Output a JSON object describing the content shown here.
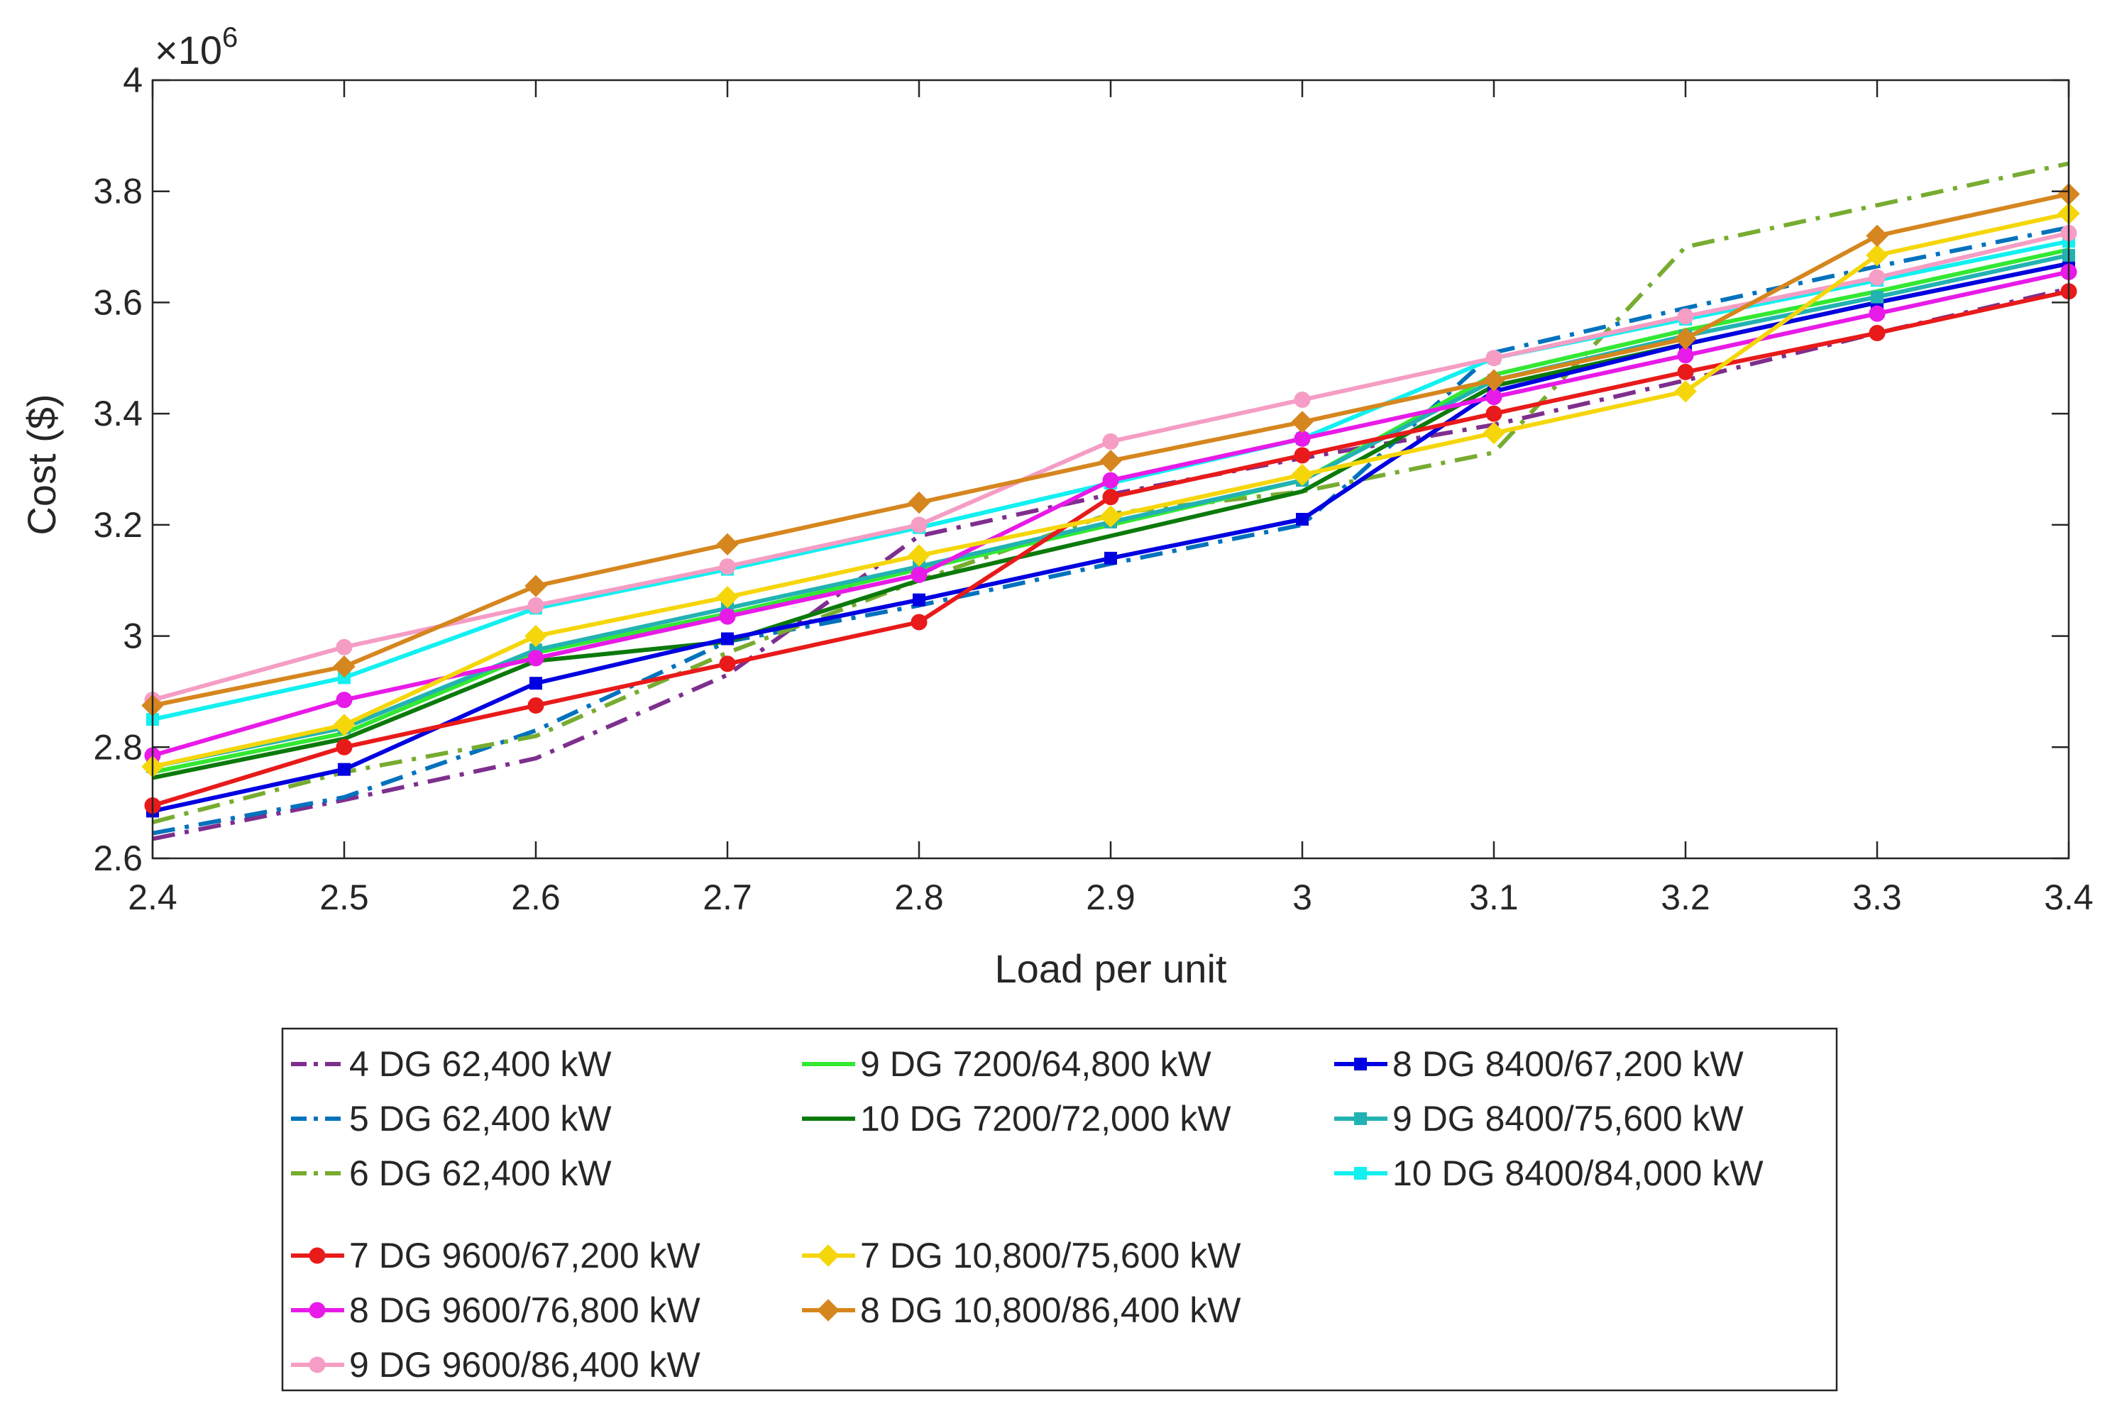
{
  "chart_data": {
    "type": "line",
    "xlabel": "Load per unit",
    "ylabel": "Cost ($)",
    "y_exponent_label": "×10",
    "y_exponent_power": "6",
    "xlim": [
      2.4,
      3.4
    ],
    "ylim": [
      2.6,
      4.0
    ],
    "y_scale": 1000000,
    "grid": false,
    "legend_position": "below plot",
    "x_ticks": [
      "2.4",
      "2.5",
      "2.6",
      "2.7",
      "2.8",
      "2.9",
      "3",
      "3.1",
      "3.2",
      "3.3",
      "3.4"
    ],
    "y_ticks": [
      "2.6",
      "2.8",
      "3",
      "3.2",
      "3.4",
      "3.6",
      "3.8",
      "4"
    ],
    "x": [
      2.4,
      2.5,
      2.6,
      2.7,
      2.8,
      2.9,
      3.0,
      3.1,
      3.2,
      3.3,
      3.4
    ],
    "series": [
      {
        "name": "4 DG 62,400 kW",
        "color": "#7E2F8E",
        "style": "dashdot",
        "marker": "none",
        "values": [
          2.635,
          2.705,
          2.78,
          2.93,
          3.18,
          3.255,
          3.32,
          3.38,
          3.46,
          3.545,
          3.625
        ]
      },
      {
        "name": "5 DG 62,400 kW",
        "color": "#0072BD",
        "style": "dashdot",
        "marker": "none",
        "values": [
          2.645,
          2.71,
          2.83,
          2.99,
          3.055,
          3.13,
          3.2,
          3.51,
          3.59,
          3.665,
          3.735
        ]
      },
      {
        "name": "6 DG 62,400 kW",
        "color": "#77AC30",
        "style": "dashdot",
        "marker": "none",
        "values": [
          2.665,
          2.755,
          2.82,
          2.97,
          3.1,
          3.22,
          3.26,
          3.33,
          3.7,
          3.775,
          3.85
        ]
      },
      {
        "name": "9 DG 7200/64,800 kW",
        "color": "#33E833",
        "style": "solid",
        "marker": "none",
        "values": [
          2.755,
          2.825,
          2.97,
          3.04,
          3.12,
          3.2,
          3.28,
          3.47,
          3.55,
          3.62,
          3.695
        ]
      },
      {
        "name": "10 DG 7200/72,000 kW",
        "color": "#0B7A0B",
        "style": "solid",
        "marker": "none",
        "values": [
          2.745,
          2.815,
          2.955,
          2.99,
          3.1,
          3.18,
          3.26,
          3.45,
          3.525,
          3.6,
          3.67
        ]
      },
      {
        "name": "8 DG 8400/67,200 kW",
        "color": "#0000E0",
        "style": "solid",
        "marker": "square",
        "values": [
          2.685,
          2.76,
          2.915,
          2.995,
          3.065,
          3.14,
          3.21,
          3.44,
          3.525,
          3.6,
          3.67
        ]
      },
      {
        "name": "9 DG 8400/75,600 kW",
        "color": "#23B2B2",
        "style": "solid",
        "marker": "square",
        "values": [
          2.765,
          2.835,
          2.975,
          3.05,
          3.125,
          3.205,
          3.28,
          3.46,
          3.54,
          3.61,
          3.685
        ]
      },
      {
        "name": "10 DG 8400/84,000 kW",
        "color": "#12F0F0",
        "style": "solid",
        "marker": "square",
        "values": [
          2.85,
          2.925,
          3.05,
          3.12,
          3.195,
          3.275,
          3.355,
          3.5,
          3.57,
          3.64,
          3.71
        ]
      },
      {
        "name": "7 DG 9600/67,200 kW",
        "color": "#E81A1A",
        "style": "solid",
        "marker": "circle",
        "values": [
          2.695,
          2.8,
          2.875,
          2.95,
          3.025,
          3.25,
          3.325,
          3.4,
          3.475,
          3.545,
          3.62
        ]
      },
      {
        "name": "8 DG 9600/76,800 kW",
        "color": "#E81AE8",
        "style": "solid",
        "marker": "circle",
        "values": [
          2.785,
          2.885,
          2.96,
          3.035,
          3.11,
          3.28,
          3.355,
          3.43,
          3.505,
          3.58,
          3.655
        ]
      },
      {
        "name": "9 DG 9600/86,400 kW",
        "color": "#F59DC4",
        "style": "solid",
        "marker": "circle",
        "values": [
          2.885,
          2.98,
          3.055,
          3.125,
          3.2,
          3.35,
          3.425,
          3.5,
          3.575,
          3.645,
          3.725
        ]
      },
      {
        "name": "7 DG 10,800/75,600 kW",
        "color": "#F5D60A",
        "style": "solid",
        "marker": "diamond",
        "values": [
          2.765,
          2.84,
          3.0,
          3.07,
          3.145,
          3.215,
          3.29,
          3.365,
          3.44,
          3.685,
          3.76
        ]
      },
      {
        "name": "8 DG 10,800/86,400 kW",
        "color": "#D6861E",
        "style": "solid",
        "marker": "diamond",
        "values": [
          2.875,
          2.945,
          3.09,
          3.165,
          3.24,
          3.315,
          3.385,
          3.46,
          3.535,
          3.72,
          3.795
        ]
      }
    ],
    "legend_layout": {
      "columns": [
        [
          "4 DG 62,400 kW",
          "5 DG 62,400 kW",
          "6 DG 62,400 kW",
          "",
          "7 DG 9600/67,200 kW",
          "8 DG 9600/76,800 kW",
          "9 DG 9600/86,400 kW"
        ],
        [
          "9 DG 7200/64,800 kW",
          "10 DG 7200/72,000 kW",
          "",
          "",
          "7 DG 10,800/75,600 kW",
          "8 DG 10,800/86,400 kW",
          ""
        ],
        [
          "8 DG 8400/67,200 kW",
          "9 DG 8400/75,600 kW",
          "10 DG 8400/84,000 kW",
          "",
          "",
          "",
          ""
        ]
      ]
    }
  }
}
